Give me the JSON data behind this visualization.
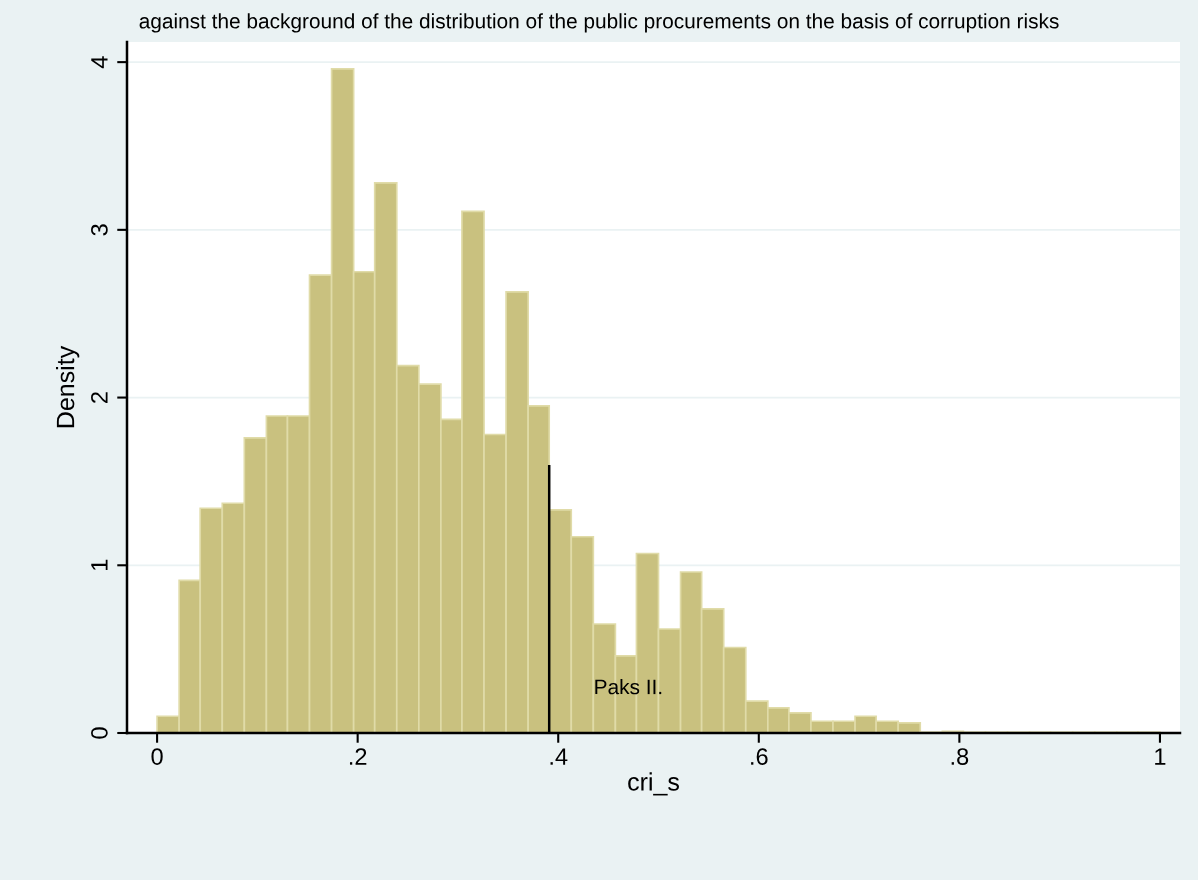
{
  "chart_data": {
    "type": "histogram",
    "title": "against the background of the distribution of the public procurements on the basis of corruption risks",
    "xlabel": "cri_s",
    "ylabel": "Density",
    "color": "#c9c17f",
    "bins": [
      0,
      0.022,
      0.043,
      0.065,
      0.087,
      0.109,
      0.13,
      0.152,
      0.174,
      0.196,
      0.217,
      0.239,
      0.261,
      0.283,
      0.304,
      0.326,
      0.348,
      0.37,
      0.391,
      0.413,
      0.435,
      0.457,
      0.478,
      0.5,
      0.522,
      0.543,
      0.565,
      0.587,
      0.609,
      0.63,
      0.652,
      0.674,
      0.696,
      0.717,
      0.739,
      0.761,
      0.783,
      0.804,
      0.826,
      0.848,
      0.87,
      0.891,
      0.913,
      0.935,
      0.957,
      0.978,
      1
    ],
    "values": [
      0.1,
      0.91,
      1.34,
      1.37,
      1.76,
      1.89,
      1.89,
      2.73,
      3.96,
      2.75,
      3.28,
      2.19,
      2.08,
      1.87,
      3.11,
      1.78,
      2.63,
      1.95,
      1.33,
      1.17,
      0.65,
      0.46,
      1.07,
      0.62,
      0.96,
      0.74,
      0.51,
      0.19,
      0.15,
      0.12,
      0.07,
      0.07,
      0.1,
      0.07,
      0.06,
      0.005,
      0.01,
      0.005,
      0.005,
      0.005,
      0.005,
      0.005,
      0.005,
      0.005,
      0.005,
      0.005
    ],
    "series": [
      {
        "type": "line",
        "color": "#000000",
        "x": [
          0.391,
          0.391
        ],
        "values": [
          0,
          1.59
        ]
      }
    ],
    "annotations": [
      "Paks II."
    ],
    "xlim": [
      -0.03,
      1.02
    ],
    "ylim": [
      0,
      4.12
    ],
    "xticks": [
      0,
      {
        "value": 0.2,
        "label": ".2"
      },
      {
        "value": 0.4,
        "label": ".4"
      },
      {
        "value": 0.6,
        "label": ".6"
      },
      {
        "value": 0.8,
        "label": ".8"
      },
      1
    ],
    "yticks": [
      0,
      1,
      2,
      3,
      4
    ],
    "grid": "y"
  }
}
